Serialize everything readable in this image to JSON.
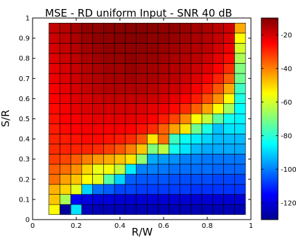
{
  "chart_data": {
    "type": "heatmap",
    "title": "MSE - RD uniform Input - SNR 40 dB",
    "xlabel": "R/W",
    "ylabel": "S/R",
    "xlim": [
      0,
      1
    ],
    "ylim": [
      0,
      1
    ],
    "x_ticks": [
      "0",
      "0.2",
      "0.4",
      "0.6",
      "0.8",
      "1"
    ],
    "y_ticks": [
      "0",
      "0.1",
      "0.2",
      "0.3",
      "0.4",
      "0.5",
      "0.6",
      "0.7",
      "0.8",
      "0.9",
      "1"
    ],
    "colorbar": {
      "range": [
        -130,
        -10
      ],
      "ticks": [
        "-20",
        "-40",
        "-60",
        "-80",
        "-100",
        "-120"
      ],
      "colormap": "jet"
    },
    "grid": {
      "x_centers": [
        0.1,
        0.15,
        0.2,
        0.25,
        0.3,
        0.35,
        0.4,
        0.45,
        0.5,
        0.55,
        0.6,
        0.65,
        0.7,
        0.75,
        0.8,
        0.85,
        0.9,
        0.95
      ],
      "y_centers": [
        0.05,
        0.1,
        0.15,
        0.2,
        0.25,
        0.3,
        0.35,
        0.4,
        0.45,
        0.5,
        0.55,
        0.6,
        0.65,
        0.7,
        0.75,
        0.8,
        0.85,
        0.9,
        0.95
      ],
      "values": [
        [
          -18,
          -16,
          -14,
          -12,
          -12,
          -11,
          -11,
          -11,
          -11,
          -11,
          -12,
          -12,
          -13,
          -14,
          -15,
          -17,
          -19,
          -45
        ],
        [
          -19,
          -17,
          -15,
          -13,
          -12,
          -12,
          -11,
          -11,
          -11,
          -12,
          -12,
          -13,
          -14,
          -15,
          -16,
          -18,
          -21,
          -55
        ],
        [
          -20,
          -18,
          -16,
          -14,
          -13,
          -12,
          -12,
          -12,
          -12,
          -12,
          -13,
          -14,
          -15,
          -16,
          -17,
          -20,
          -23,
          -60
        ],
        [
          -21,
          -19,
          -17,
          -15,
          -14,
          -13,
          -13,
          -12,
          -13,
          -13,
          -14,
          -15,
          -16,
          -17,
          -19,
          -22,
          -26,
          -65
        ],
        [
          -22,
          -20,
          -18,
          -16,
          -15,
          -14,
          -14,
          -13,
          -14,
          -14,
          -15,
          -16,
          -17,
          -19,
          -21,
          -25,
          -30,
          -70
        ],
        [
          -23,
          -21,
          -19,
          -17,
          -16,
          -15,
          -15,
          -14,
          -15,
          -15,
          -16,
          -17,
          -19,
          -21,
          -24,
          -29,
          -36,
          -72
        ],
        [
          -24,
          -22,
          -20,
          -18,
          -17,
          -16,
          -16,
          -16,
          -16,
          -17,
          -18,
          -19,
          -21,
          -24,
          -28,
          -35,
          -45,
          -78
        ],
        [
          -25,
          -23,
          -21,
          -20,
          -19,
          -18,
          -18,
          -18,
          -18,
          -19,
          -20,
          -22,
          -25,
          -28,
          -34,
          -42,
          -55,
          -82
        ],
        [
          -26,
          -24,
          -22,
          -21,
          -20,
          -20,
          -20,
          -20,
          -21,
          -22,
          -23,
          -26,
          -30,
          -36,
          -44,
          -55,
          -66,
          -85
        ],
        [
          -27,
          -25,
          -24,
          -23,
          -22,
          -22,
          -22,
          -22,
          -23,
          -25,
          -28,
          -33,
          -41,
          -55,
          -62,
          -74,
          -83,
          -86
        ],
        [
          -28,
          -26,
          -25,
          -24,
          -24,
          -24,
          -24,
          -25,
          -27,
          -30,
          -36,
          -44,
          -52,
          -72,
          -82,
          -92,
          -88,
          -88
        ],
        [
          -29,
          -28,
          -27,
          -26,
          -26,
          -27,
          -28,
          -30,
          -35,
          -52,
          -38,
          -78,
          -84,
          -87,
          -90,
          -93,
          -93,
          -93
        ],
        [
          -30,
          -29,
          -29,
          -29,
          -30,
          -32,
          -35,
          -40,
          -48,
          -70,
          -63,
          -83,
          -88,
          -93,
          -95,
          -95,
          -95,
          -95
        ],
        [
          -32,
          -33,
          -36,
          -40,
          -43,
          -45,
          -48,
          -52,
          -68,
          -95,
          -97,
          -98,
          -100,
          -100,
          -101,
          -101,
          -101,
          -101
        ],
        [
          -36,
          -38,
          -42,
          -50,
          -57,
          -56,
          -62,
          -87,
          -100,
          -100,
          -101,
          -102,
          -102,
          -102,
          -102,
          -103,
          -103,
          -103
        ],
        [
          -38,
          -44,
          -48,
          -55,
          -58,
          -75,
          -90,
          -104,
          -105,
          -105,
          -105,
          -106,
          -106,
          -106,
          -106,
          -107,
          -107,
          -107
        ],
        [
          -46,
          -50,
          -58,
          -90,
          -102,
          -104,
          -107,
          -107,
          -108,
          -108,
          -108,
          -108,
          -108,
          -109,
          -109,
          -109,
          -109,
          -109
        ],
        [
          -48,
          -65,
          -115,
          -119,
          -120,
          -120,
          -121,
          -121,
          -121,
          -121,
          -121,
          -121,
          -121,
          -121,
          -121,
          -121,
          -121,
          -121
        ],
        [
          -55,
          -128,
          -88,
          -124,
          -125,
          -125,
          -125,
          -125,
          -125,
          -125,
          -125,
          -125,
          -125,
          -125,
          -125,
          -125,
          -125,
          -125
        ]
      ]
    }
  }
}
